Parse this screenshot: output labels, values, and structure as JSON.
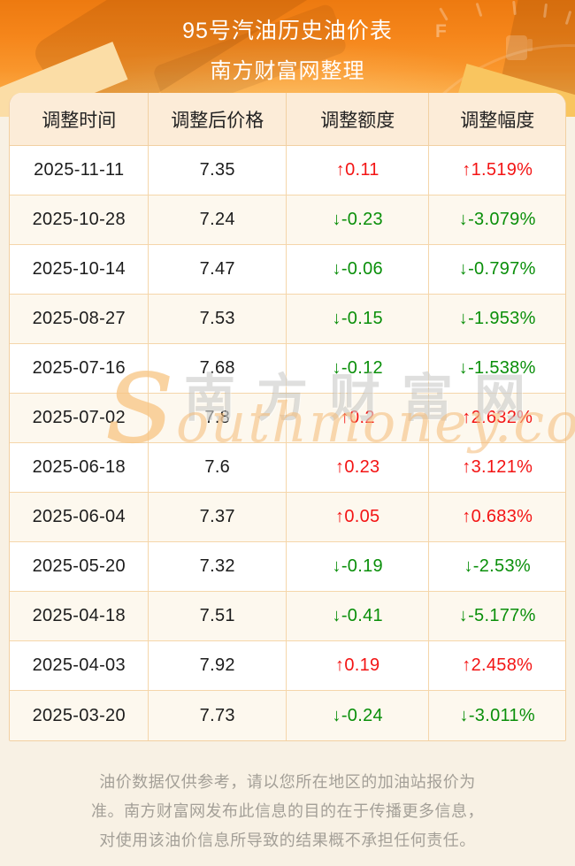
{
  "header": {
    "title": "95号汽油历史油价表",
    "subtitle": "南方财富网整理",
    "gauge_label": "F"
  },
  "table": {
    "columns": [
      "调整时间",
      "调整后价格",
      "调整额度",
      "调整幅度"
    ],
    "rows": [
      {
        "date": "2025-11-11",
        "price": "7.35",
        "change": "↑0.11",
        "percent": "↑1.519%"
      },
      {
        "date": "2025-10-28",
        "price": "7.24",
        "change": "↓-0.23",
        "percent": "↓-3.079%"
      },
      {
        "date": "2025-10-14",
        "price": "7.47",
        "change": "↓-0.06",
        "percent": "↓-0.797%"
      },
      {
        "date": "2025-08-27",
        "price": "7.53",
        "change": "↓-0.15",
        "percent": "↓-1.953%"
      },
      {
        "date": "2025-07-16",
        "price": "7.68",
        "change": "↓-0.12",
        "percent": "↓-1.538%"
      },
      {
        "date": "2025-07-02",
        "price": "7.8",
        "change": "↑0.2",
        "percent": "↑2.632%"
      },
      {
        "date": "2025-06-18",
        "price": "7.6",
        "change": "↑0.23",
        "percent": "↑3.121%"
      },
      {
        "date": "2025-06-04",
        "price": "7.37",
        "change": "↑0.05",
        "percent": "↑0.683%"
      },
      {
        "date": "2025-05-20",
        "price": "7.32",
        "change": "↓-0.19",
        "percent": "↓-2.53%"
      },
      {
        "date": "2025-04-18",
        "price": "7.51",
        "change": "↓-0.41",
        "percent": "↓-5.177%"
      },
      {
        "date": "2025-04-03",
        "price": "7.92",
        "change": "↑0.19",
        "percent": "↑2.458%"
      },
      {
        "date": "2025-03-20",
        "price": "7.73",
        "change": "↓-0.24",
        "percent": "↓-3.011%"
      }
    ]
  },
  "watermark": {
    "brand_cn": "南方财富网",
    "brand_en": "southmoney.com"
  },
  "footer": {
    "lines": [
      "油价数据仅供参考，请以您所在地区的加油站报价为",
      "准。南方财富网发布此信息的目的在于传播更多信息，",
      "对使用该油价信息所导致的结果概不承担任何责任。"
    ]
  },
  "colors": {
    "up_red": "#f31414",
    "down_green": "#0a8f0a",
    "accent_orange": "#f5851a"
  }
}
